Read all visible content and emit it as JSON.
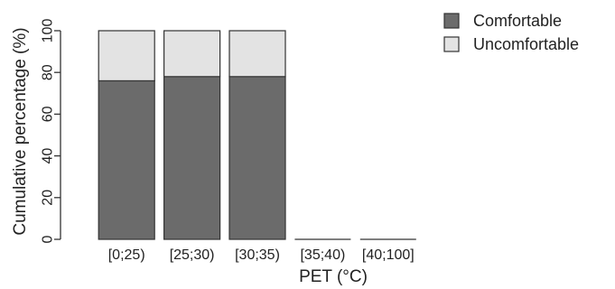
{
  "chart_data": {
    "type": "bar",
    "stacked": true,
    "categories": [
      "[0;25)",
      "[25;30)",
      "[30;35)",
      "[35;40)",
      "[40;100]"
    ],
    "series": [
      {
        "name": "Comfortable",
        "color": "#6b6b6b",
        "values": [
          76,
          78,
          78,
          0,
          0
        ]
      },
      {
        "name": "Uncomfortable",
        "color": "#e3e3e3",
        "values": [
          24,
          22,
          22,
          0,
          0
        ]
      }
    ],
    "title": "",
    "xlabel": "PET (°C)",
    "ylabel": "Cumulative percentage (%)",
    "ylim": [
      0,
      100
    ],
    "yticks": [
      "0",
      "20",
      "40",
      "60",
      "80",
      "100"
    ],
    "grid": false,
    "legend_position": "top-right"
  }
}
